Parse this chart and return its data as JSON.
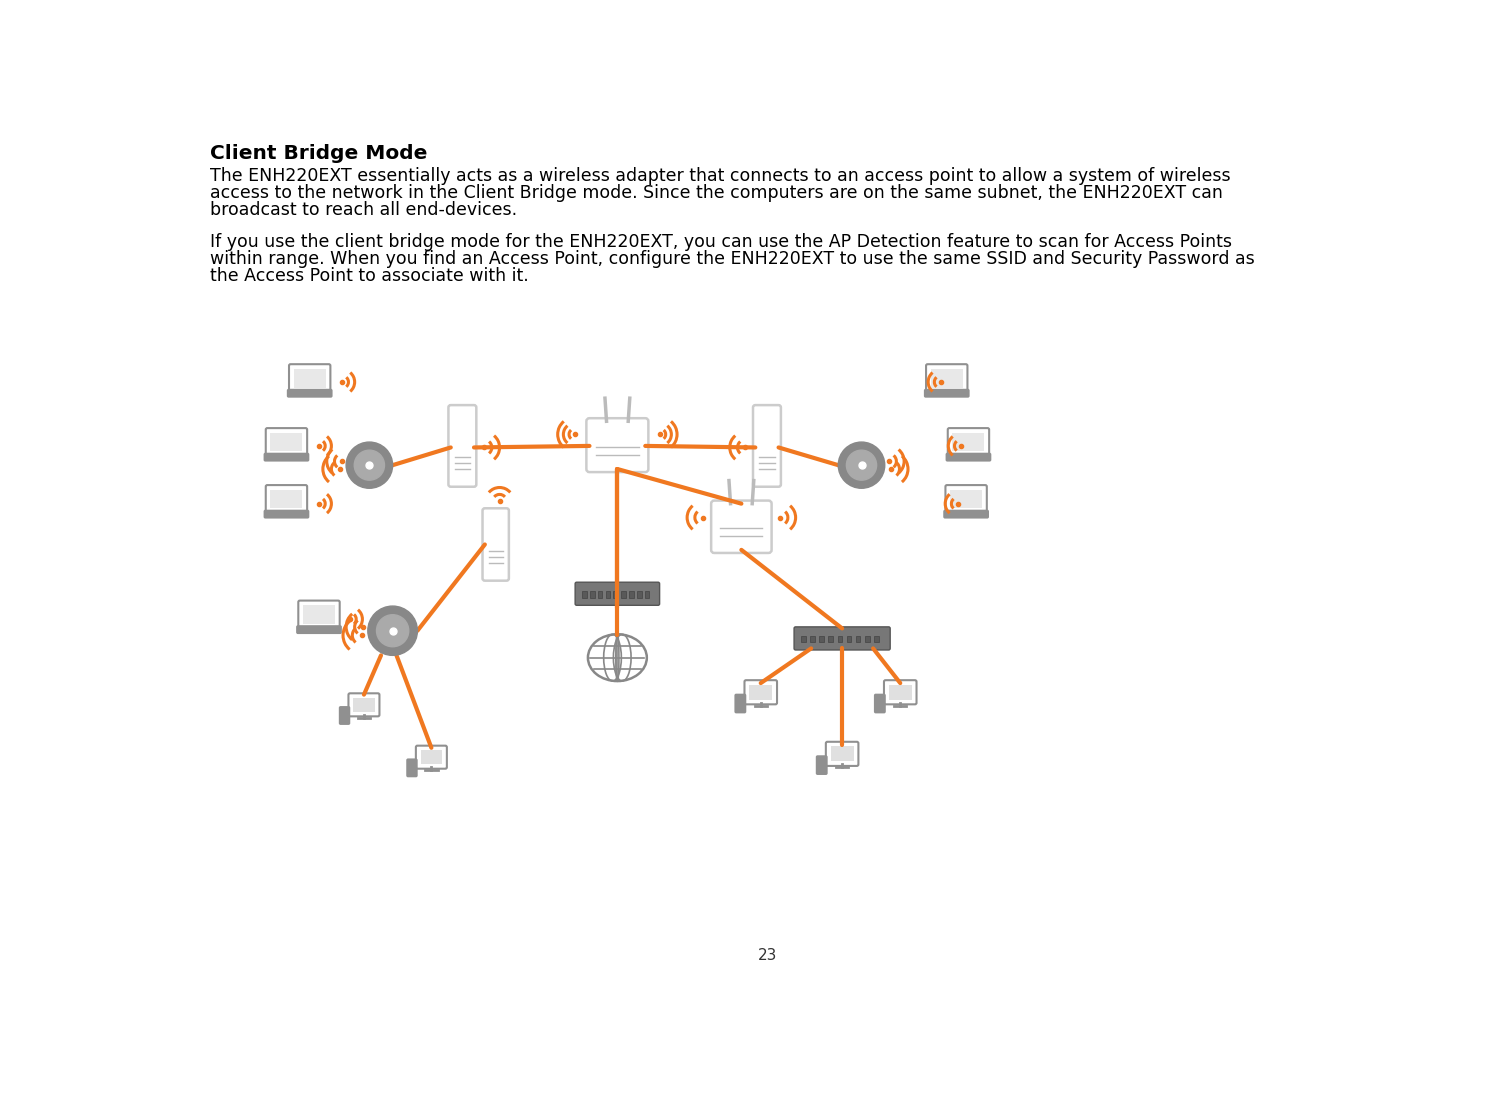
{
  "title": "Client Bridge Mode",
  "paragraph1_line1": "The ENH220EXT essentially acts as a wireless adapter that connects to an access point to allow a system of wireless",
  "paragraph1_line2": "access to the network in the Client Bridge mode. Since the computers are on the same subnet, the ENH220EXT can",
  "paragraph1_line3": "broadcast to reach all end-devices.",
  "paragraph2_line1": "If you use the client bridge mode for the ENH220EXT, you can use the AP Detection feature to scan for Access Points",
  "paragraph2_line2": "within range. When you find an Access Point, configure the ENH220EXT to use the same SSID and Security Password as",
  "paragraph2_line3": "the Access Point to associate with it.",
  "page_number": "23",
  "bg_color": "#ffffff",
  "text_color": "#000000",
  "orange_color": "#f07820",
  "gray_color": "#909090",
  "dark_gray": "#666666",
  "light_gray": "#bbbbbb",
  "title_fontsize": 14.5,
  "body_fontsize": 12.5
}
